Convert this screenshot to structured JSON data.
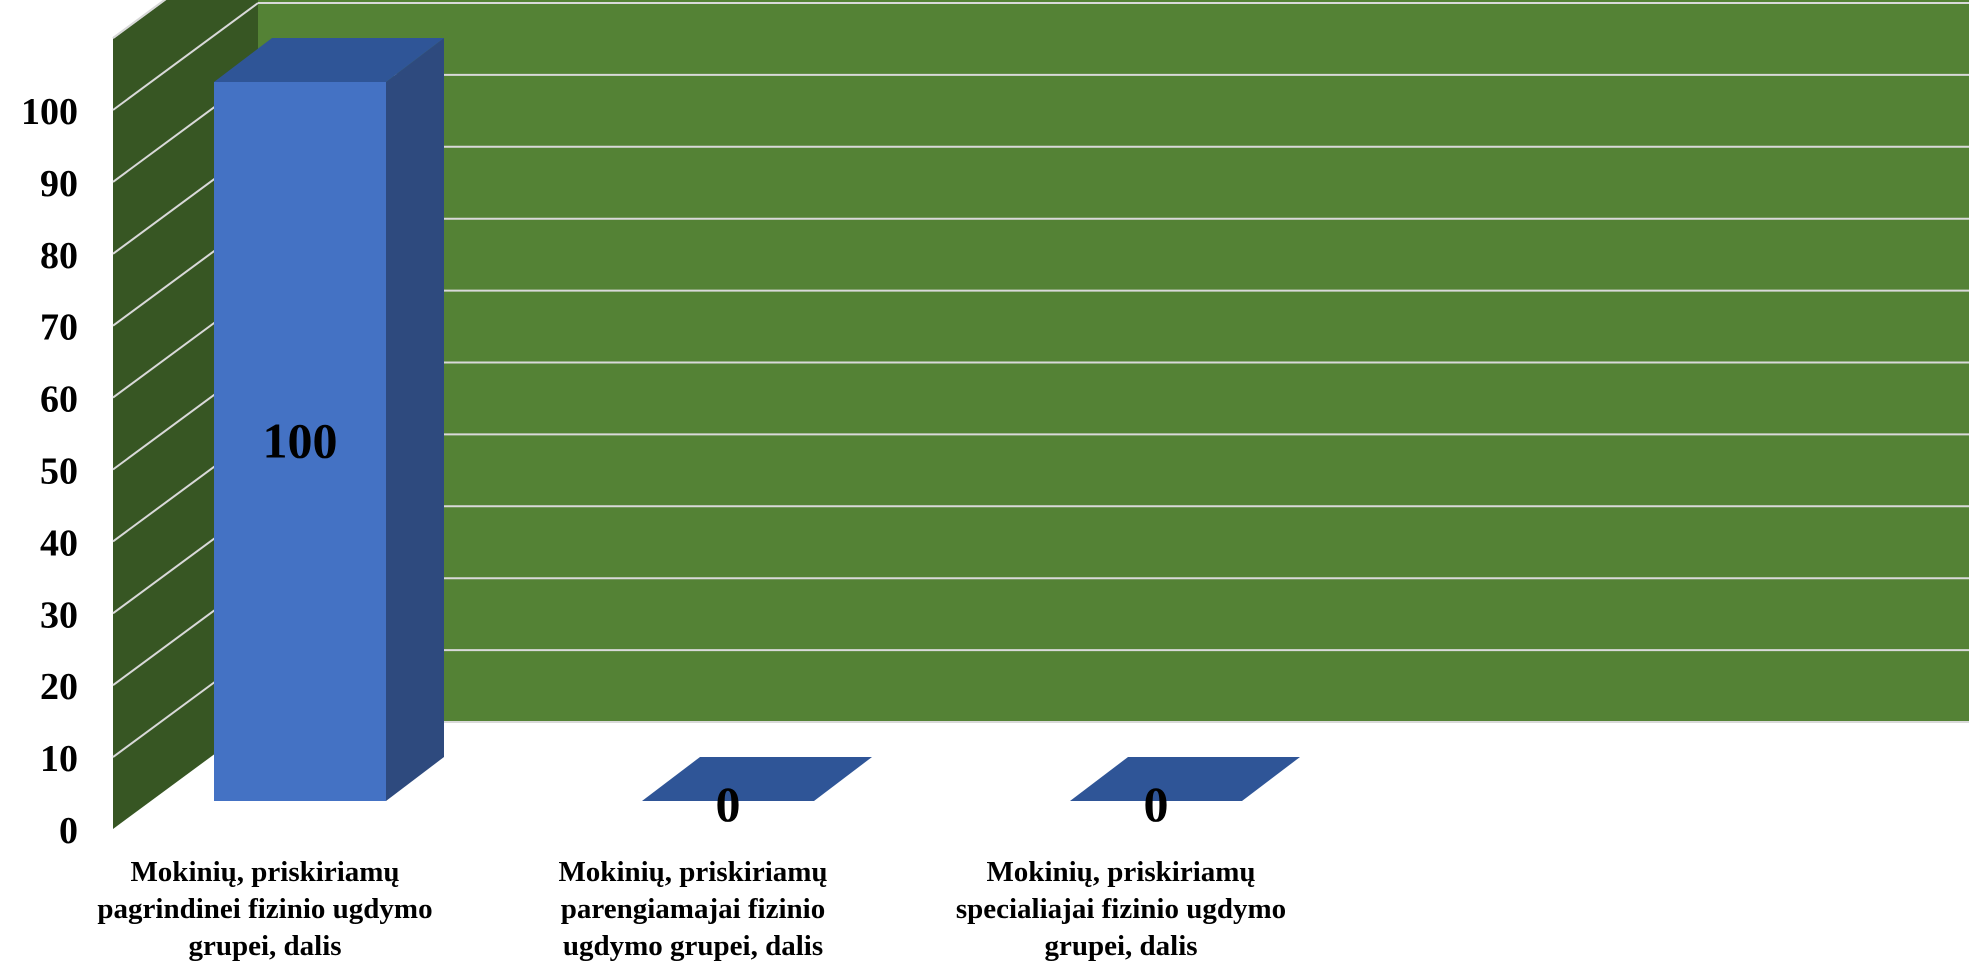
{
  "chart_data": {
    "type": "bar",
    "style": "3d-column",
    "categories": [
      [
        "Mokinių, priskiriamų",
        "pagrindinei fizinio ugdymo",
        "grupei, dalis"
      ],
      [
        "Mokinių, priskiriamų",
        "parengiamajai fizinio",
        "ugdymo grupei, dalis"
      ],
      [
        "Mokinių, priskiriamų",
        "specialiajai fizinio ugdymo",
        "grupei, dalis"
      ]
    ],
    "values": [
      100,
      0,
      0
    ],
    "data_labels": [
      "100",
      "0",
      "0"
    ],
    "y_ticks": [
      "0",
      "10",
      "20",
      "30",
      "40",
      "50",
      "60",
      "70",
      "80",
      "90",
      "100"
    ],
    "ylim": [
      0,
      110
    ],
    "grid": true,
    "legend": "none",
    "colors": {
      "back_wall": "#548235",
      "side_wall": "#375623",
      "bar_front": "#4472C4",
      "bar_top": "#2F5597",
      "bar_side": "#2E4A7E",
      "gridline": "#D9D9D9"
    }
  }
}
